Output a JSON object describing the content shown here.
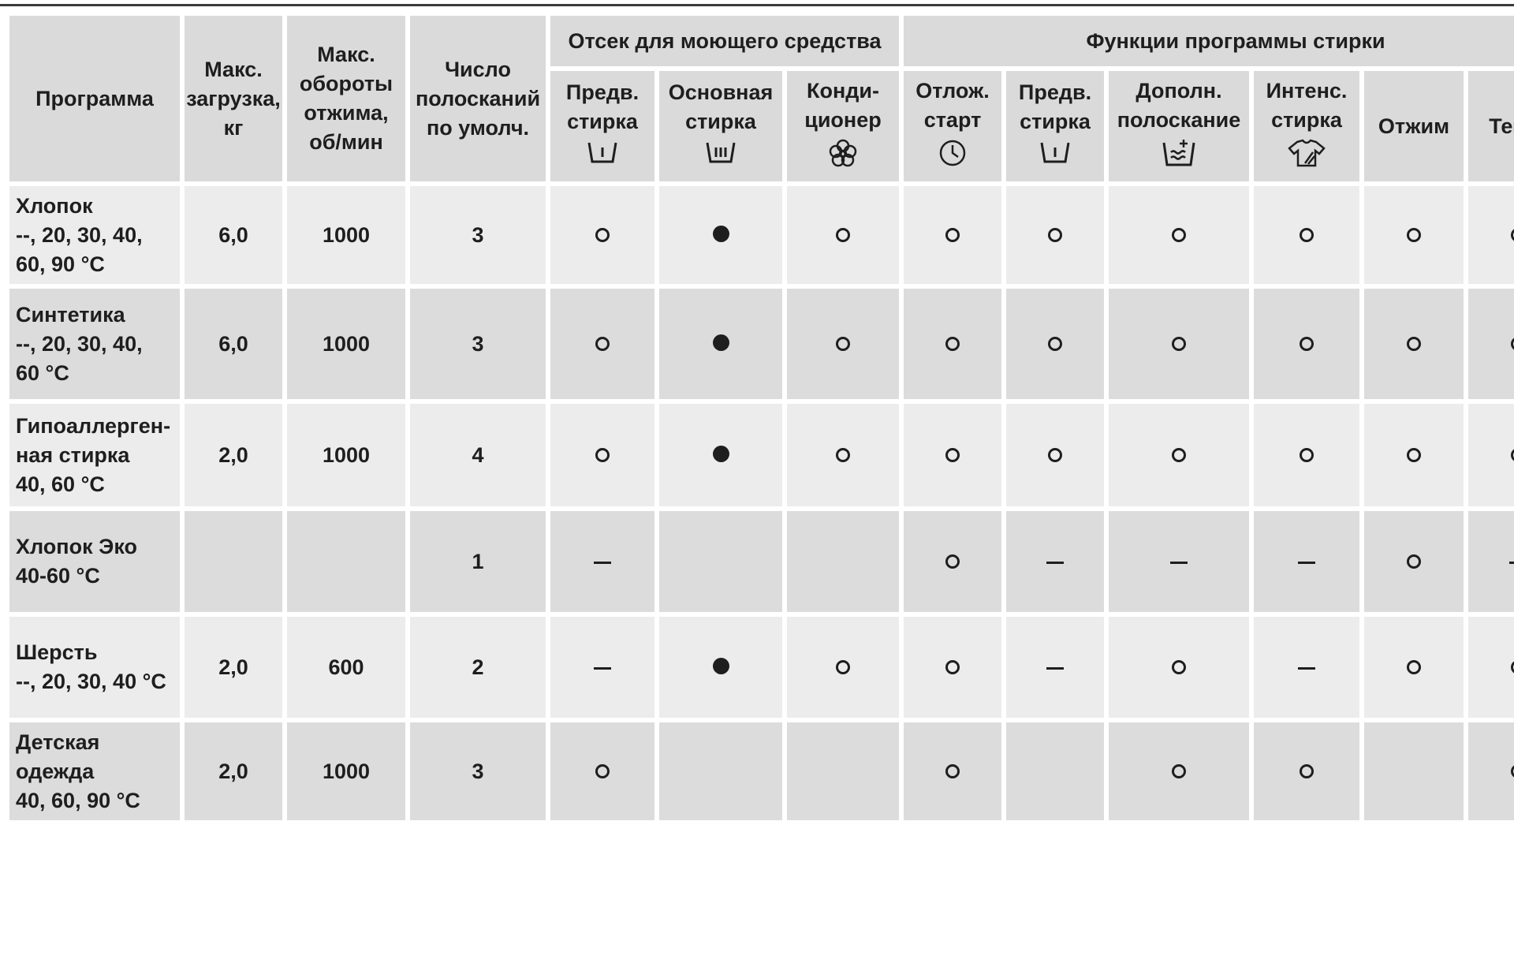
{
  "header": {
    "program": "Программа",
    "max_load": "Макс.\nзагрузка,\nкг",
    "max_spin": "Макс.\nобороты\nотжима,\nоб/мин",
    "rinses": "Число\nполосканий\nпо умолч.",
    "group_compartment": "Отсек для моющего средства",
    "group_functions": "Функции программы стирки",
    "cols": [
      {
        "label": "Предв.\nстирка",
        "icon": "prewash-tub-icon"
      },
      {
        "label": "Основная\nстирка",
        "icon": "main-wash-tub-icon"
      },
      {
        "label": "Конди-\nционер",
        "icon": "softener-flower-icon"
      },
      {
        "label": "Отлож.\nстарт",
        "icon": "delay-clock-icon"
      },
      {
        "label": "Предв.\nстирка",
        "icon": "prewash-tub-icon"
      },
      {
        "label": "Дополн.\nполоскание",
        "icon": "extra-rinse-icon"
      },
      {
        "label": "Интенс.\nстирка",
        "icon": "intensive-shirt-icon"
      },
      {
        "label": "Отжим",
        "icon": ""
      },
      {
        "label": "Темп.",
        "icon": ""
      }
    ]
  },
  "rows": [
    {
      "program": [
        "Хлопок",
        "--, 20, 30, 40,",
        "60, 90 °C"
      ],
      "load": "6,0",
      "spin": "1000",
      "rinses": "3",
      "marks": [
        "open",
        "full",
        "open",
        "open",
        "open",
        "open",
        "open",
        "open",
        "open"
      ],
      "tone": "lt"
    },
    {
      "program": [
        "Синтетика",
        "--, 20, 30, 40,",
        "60 °C"
      ],
      "load": "6,0",
      "spin": "1000",
      "rinses": "3",
      "marks": [
        "open",
        "full",
        "open",
        "open",
        "open",
        "open",
        "open",
        "open",
        "open"
      ],
      "tone": "dk"
    },
    {
      "program": [
        "Гипоаллерген-",
        "ная стирка",
        "40, 60 °C"
      ],
      "load": "2,0",
      "spin": "1000",
      "rinses": "4",
      "marks": [
        "open",
        "full",
        "open",
        "open",
        "open",
        "open",
        "open",
        "open",
        "open"
      ],
      "tone": "lt"
    },
    {
      "program": [
        "Хлопок Эко",
        "40-60 °C"
      ],
      "load": "",
      "spin": "",
      "rinses": "1",
      "marks": [
        "dash",
        "",
        "",
        "open",
        "dash",
        "dash",
        "dash",
        "open",
        "dash"
      ],
      "tone": "dk"
    },
    {
      "program": [
        "Шерсть",
        "--, 20, 30, 40 °C"
      ],
      "load": "2,0",
      "spin": "600",
      "rinses": "2",
      "marks": [
        "dash",
        "full",
        "open",
        "open",
        "dash",
        "open",
        "dash",
        "open",
        "open"
      ],
      "tone": "lt"
    },
    {
      "program": [
        "Детская",
        "одежда",
        "40, 60, 90 °C"
      ],
      "load": "2,0",
      "spin": "1000",
      "rinses": "3",
      "marks": [
        "open",
        "",
        "",
        "open",
        "",
        "open",
        "open",
        "",
        "open"
      ],
      "tone": "dk"
    }
  ]
}
